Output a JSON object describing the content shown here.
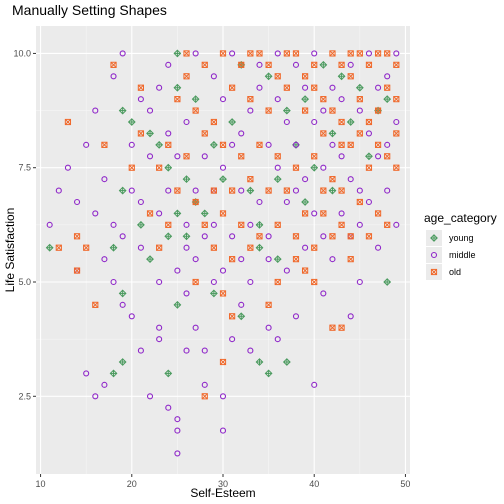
{
  "chart_data": {
    "type": "scatter",
    "title": "Manually Setting Shapes",
    "xlabel": "Self-Esteem",
    "ylabel": "Life Satisfaction",
    "xlim": [
      9.5,
      50.5
    ],
    "ylim": [
      0.8,
      10.6
    ],
    "x_ticks": [
      10,
      20,
      30,
      40,
      50
    ],
    "y_ticks": [
      2.5,
      5.0,
      7.5,
      10.0
    ],
    "x_tick_labels": [
      "10",
      "20",
      "30",
      "40",
      "50"
    ],
    "y_tick_labels": [
      "2.5",
      "5.0",
      "7.5",
      "10.0"
    ],
    "grid": true,
    "legend_title": "age_category",
    "legend_position": "right",
    "series": [
      {
        "name": "young",
        "color": "#4a9a5e",
        "shape": "diamond-plus",
        "points": [
          [
            11,
            5.75
          ],
          [
            25,
            10.0
          ],
          [
            25,
            9.25
          ],
          [
            19,
            8.75
          ],
          [
            20,
            8.5
          ],
          [
            22,
            8.25
          ],
          [
            23,
            8.0
          ],
          [
            24,
            7.5
          ],
          [
            26,
            7.25
          ],
          [
            19,
            7.0
          ],
          [
            25,
            6.5
          ],
          [
            27,
            6.75
          ],
          [
            21,
            6.25
          ],
          [
            24,
            6.0
          ],
          [
            26,
            6.0
          ],
          [
            18,
            5.75
          ],
          [
            22,
            5.5
          ],
          [
            34,
            5.75
          ],
          [
            36,
            5.5
          ],
          [
            19,
            4.75
          ],
          [
            25,
            4.5
          ],
          [
            29,
            4.75
          ],
          [
            32,
            4.25
          ],
          [
            19,
            3.25
          ],
          [
            18,
            3.0
          ],
          [
            24,
            3.0
          ],
          [
            34,
            3.25
          ],
          [
            37,
            3.25
          ],
          [
            35,
            3.0
          ],
          [
            48,
            5.0
          ],
          [
            41,
            9.75
          ],
          [
            43,
            9.5
          ],
          [
            45,
            9.25
          ],
          [
            39,
            9.0
          ],
          [
            47,
            8.75
          ],
          [
            44,
            8.5
          ],
          [
            42,
            8.25
          ],
          [
            38,
            8.0
          ],
          [
            46,
            7.75
          ],
          [
            40,
            7.5
          ],
          [
            36,
            7.25
          ],
          [
            33,
            7.0
          ],
          [
            37,
            8.75
          ],
          [
            31,
            8.5
          ],
          [
            29,
            8.0
          ],
          [
            35,
            9.5
          ],
          [
            32,
            9.75
          ],
          [
            48,
            9.0
          ],
          [
            28,
            6.5
          ],
          [
            30,
            7.25
          ],
          [
            34,
            6.25
          ],
          [
            39,
            6.75
          ],
          [
            42,
            7.0
          ],
          [
            27,
            9.0
          ]
        ]
      },
      {
        "name": "middle",
        "color": "#8f27c9",
        "shape": "circle",
        "points": [
          [
            11,
            6.25
          ],
          [
            13,
            7.5
          ],
          [
            15,
            8.0
          ],
          [
            14,
            6.75
          ],
          [
            16,
            6.5
          ],
          [
            17,
            7.25
          ],
          [
            15,
            3.0
          ],
          [
            16,
            2.5
          ],
          [
            17,
            2.75
          ],
          [
            17,
            5.5
          ],
          [
            18,
            5.0
          ],
          [
            19,
            4.5
          ],
          [
            20,
            4.25
          ],
          [
            19,
            6.0
          ],
          [
            21,
            5.75
          ],
          [
            21,
            3.5
          ],
          [
            23,
            3.75
          ],
          [
            22,
            2.5
          ],
          [
            24,
            2.25
          ],
          [
            25,
            2.0
          ],
          [
            25,
            1.75
          ],
          [
            25,
            1.25
          ],
          [
            23,
            4.0
          ],
          [
            26,
            3.5
          ],
          [
            26,
            4.75
          ],
          [
            27,
            4.0
          ],
          [
            28,
            3.5
          ],
          [
            28,
            2.75
          ],
          [
            30,
            2.5
          ],
          [
            31,
            3.75
          ],
          [
            32,
            4.5
          ],
          [
            33,
            3.5
          ],
          [
            35,
            4.0
          ],
          [
            36,
            3.75
          ],
          [
            40,
            2.75
          ],
          [
            30,
            1.75
          ],
          [
            41,
            4.75
          ],
          [
            44,
            4.25
          ],
          [
            45,
            5.0
          ],
          [
            38,
            4.25
          ],
          [
            18,
            9.5
          ],
          [
            19,
            10.0
          ],
          [
            21,
            9.0
          ],
          [
            24,
            9.75
          ],
          [
            27,
            10.0
          ],
          [
            29,
            9.5
          ],
          [
            31,
            10.0
          ],
          [
            22,
            7.75
          ],
          [
            20,
            7.0
          ],
          [
            23,
            6.5
          ],
          [
            24,
            7.0
          ],
          [
            26,
            8.5
          ],
          [
            28,
            7.75
          ],
          [
            30,
            9.0
          ],
          [
            32,
            8.25
          ],
          [
            34,
            9.25
          ],
          [
            36,
            10.0
          ],
          [
            38,
            9.75
          ],
          [
            40,
            10.0
          ],
          [
            42,
            9.25
          ],
          [
            44,
            9.75
          ],
          [
            46,
            10.0
          ],
          [
            48,
            9.5
          ],
          [
            49,
            8.5
          ],
          [
            47,
            7.75
          ],
          [
            45,
            7.0
          ],
          [
            43,
            6.5
          ],
          [
            41,
            6.0
          ],
          [
            39,
            5.75
          ],
          [
            37,
            5.25
          ],
          [
            35,
            5.5
          ],
          [
            33,
            5.0
          ],
          [
            31,
            6.0
          ],
          [
            29,
            6.25
          ],
          [
            27,
            5.5
          ],
          [
            25,
            5.25
          ],
          [
            23,
            5.0
          ],
          [
            21,
            6.75
          ],
          [
            30,
            7.5
          ],
          [
            32,
            7.0
          ],
          [
            34,
            6.75
          ],
          [
            36,
            7.5
          ],
          [
            38,
            8.0
          ],
          [
            40,
            8.5
          ],
          [
            42,
            8.0
          ],
          [
            44,
            7.25
          ],
          [
            46,
            8.25
          ],
          [
            48,
            7.0
          ],
          [
            49,
            6.25
          ],
          [
            47,
            5.75
          ],
          [
            33,
            8.75
          ],
          [
            35,
            8.0
          ],
          [
            37,
            6.75
          ],
          [
            39,
            7.25
          ],
          [
            41,
            8.75
          ],
          [
            43,
            9.0
          ],
          [
            28,
            6.0
          ],
          [
            26,
            6.25
          ],
          [
            24,
            8.25
          ],
          [
            22,
            8.75
          ],
          [
            20,
            8.0
          ],
          [
            29,
            7.0
          ],
          [
            31,
            8.0
          ],
          [
            34,
            9.75
          ],
          [
            36,
            9.0
          ],
          [
            39,
            9.25
          ],
          [
            45,
            8.75
          ],
          [
            47,
            9.25
          ],
          [
            49,
            10.0
          ],
          [
            48,
            8.0
          ],
          [
            46,
            6.75
          ],
          [
            44,
            6.0
          ],
          [
            42,
            5.5
          ],
          [
            40,
            6.5
          ],
          [
            37,
            8.5
          ],
          [
            33,
            6.25
          ],
          [
            30,
            5.25
          ],
          [
            27,
            7.0
          ],
          [
            25,
            7.75
          ],
          [
            23,
            9.25
          ],
          [
            38,
            7.0
          ],
          [
            41,
            7.5
          ],
          [
            43,
            7.75
          ],
          [
            45,
            6.25
          ],
          [
            35,
            6.0
          ],
          [
            32,
            5.5
          ],
          [
            29,
            5.0
          ],
          [
            26,
            5.75
          ],
          [
            14,
            5.25
          ],
          [
            12,
            7.0
          ],
          [
            16,
            8.75
          ],
          [
            18,
            6.25
          ]
        ]
      },
      {
        "name": "old",
        "color": "#f0682a",
        "shape": "square-cross",
        "points": [
          [
            13,
            8.5
          ],
          [
            12,
            5.75
          ],
          [
            14,
            6.0
          ],
          [
            15,
            5.75
          ],
          [
            14,
            5.25
          ],
          [
            16,
            4.5
          ],
          [
            18,
            9.75
          ],
          [
            17,
            8.0
          ],
          [
            21,
            8.25
          ],
          [
            20,
            7.5
          ],
          [
            23,
            7.5
          ],
          [
            22,
            6.5
          ],
          [
            24,
            6.25
          ],
          [
            23,
            5.75
          ],
          [
            29,
            5.75
          ],
          [
            27,
            5.0
          ],
          [
            30,
            4.75
          ],
          [
            30,
            3.25
          ],
          [
            28,
            2.5
          ],
          [
            31,
            4.25
          ],
          [
            35,
            4.5
          ],
          [
            39,
            5.25
          ],
          [
            42,
            4.0
          ],
          [
            43,
            4.0
          ],
          [
            44,
            6.0
          ],
          [
            43,
            6.25
          ],
          [
            41,
            6.5
          ],
          [
            26,
            10.0
          ],
          [
            28,
            9.75
          ],
          [
            30,
            10.0
          ],
          [
            32,
            9.75
          ],
          [
            34,
            10.0
          ],
          [
            36,
            9.5
          ],
          [
            38,
            10.0
          ],
          [
            40,
            9.75
          ],
          [
            42,
            10.0
          ],
          [
            44,
            10.0
          ],
          [
            46,
            9.75
          ],
          [
            48,
            10.0
          ],
          [
            49,
            9.75
          ],
          [
            25,
            9.0
          ],
          [
            27,
            8.75
          ],
          [
            29,
            8.5
          ],
          [
            31,
            9.25
          ],
          [
            33,
            9.0
          ],
          [
            35,
            8.75
          ],
          [
            37,
            9.25
          ],
          [
            39,
            8.75
          ],
          [
            41,
            9.0
          ],
          [
            43,
            8.5
          ],
          [
            45,
            9.0
          ],
          [
            47,
            8.75
          ],
          [
            49,
            9.0
          ],
          [
            24,
            8.0
          ],
          [
            26,
            7.75
          ],
          [
            28,
            8.25
          ],
          [
            30,
            8.0
          ],
          [
            32,
            7.75
          ],
          [
            34,
            8.0
          ],
          [
            36,
            7.75
          ],
          [
            38,
            7.5
          ],
          [
            40,
            7.75
          ],
          [
            42,
            7.25
          ],
          [
            44,
            8.0
          ],
          [
            46,
            7.5
          ],
          [
            48,
            7.75
          ],
          [
            25,
            7.0
          ],
          [
            27,
            6.75
          ],
          [
            29,
            7.0
          ],
          [
            31,
            7.0
          ],
          [
            33,
            7.25
          ],
          [
            35,
            7.0
          ],
          [
            37,
            7.0
          ],
          [
            39,
            6.5
          ],
          [
            41,
            7.0
          ],
          [
            43,
            7.0
          ],
          [
            45,
            6.75
          ],
          [
            47,
            6.5
          ],
          [
            49,
            7.5
          ],
          [
            28,
            6.25
          ],
          [
            30,
            6.5
          ],
          [
            32,
            6.25
          ],
          [
            34,
            6.0
          ],
          [
            36,
            6.25
          ],
          [
            38,
            6.0
          ],
          [
            40,
            5.75
          ],
          [
            42,
            6.0
          ],
          [
            44,
            5.5
          ],
          [
            46,
            6.0
          ],
          [
            48,
            6.25
          ],
          [
            36,
            5.0
          ],
          [
            38,
            5.5
          ],
          [
            40,
            5.0
          ],
          [
            33,
            5.75
          ],
          [
            31,
            5.5
          ],
          [
            26,
            9.5
          ],
          [
            40,
            9.25
          ],
          [
            42,
            8.75
          ],
          [
            44,
            9.5
          ],
          [
            46,
            8.5
          ],
          [
            48,
            9.25
          ],
          [
            45,
            10.0
          ],
          [
            47,
            10.0
          ],
          [
            43,
            9.75
          ],
          [
            39,
            9.5
          ],
          [
            37,
            10.0
          ],
          [
            35,
            9.75
          ],
          [
            33,
            10.0
          ],
          [
            41,
            8.25
          ],
          [
            43,
            8.0
          ],
          [
            45,
            8.25
          ],
          [
            47,
            8.0
          ],
          [
            49,
            8.25
          ],
          [
            21,
            9.25
          ]
        ]
      }
    ]
  }
}
